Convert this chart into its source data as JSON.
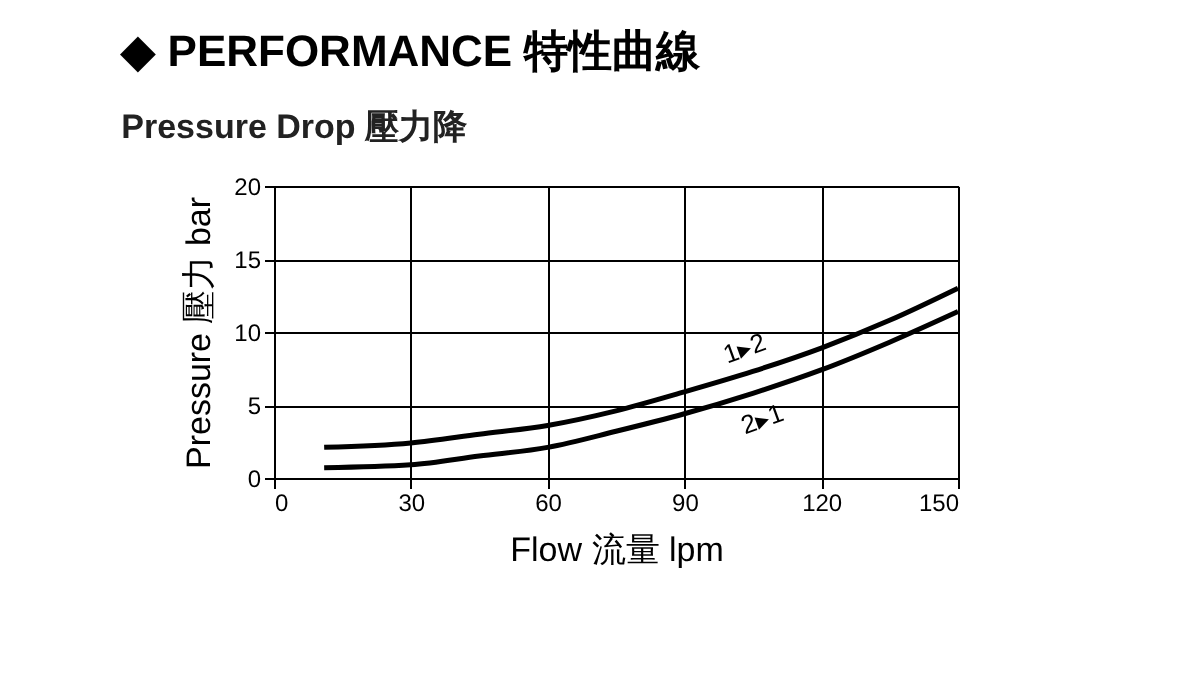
{
  "chart_data": {
    "type": "line",
    "title": "◆ PERFORMANCE 特性曲線",
    "subtitle": "Pressure Drop 壓力降",
    "xlabel": "Flow 流量 lpm",
    "ylabel": "Pressure 壓力 bar",
    "x": [
      11,
      30,
      45,
      60,
      75,
      90,
      105,
      120,
      135,
      150
    ],
    "series": [
      {
        "color": "#000000",
        "values": [
          2.1,
          2.4,
          3.0,
          3.6,
          4.6,
          5.9,
          7.3,
          8.9,
          10.8,
          13.0
        ]
      },
      {
        "color": "#000000",
        "values": [
          0.7,
          0.9,
          1.5,
          2.1,
          3.2,
          4.4,
          5.8,
          7.4,
          9.3,
          11.4
        ]
      }
    ],
    "annotations": [
      {
        "text": "1▸2",
        "x": 105,
        "y": 7.3
      },
      {
        "text": "2▸1",
        "x": 105,
        "y": 5.8
      }
    ],
    "xlim": [
      0,
      150
    ],
    "xticks": [
      0,
      30,
      60,
      90,
      120,
      150
    ],
    "ylim": [
      0,
      20
    ],
    "yticks": [
      0,
      5,
      10,
      15,
      20
    ],
    "grid": true,
    "legend": false,
    "marker": "none",
    "line_style": "solid"
  }
}
